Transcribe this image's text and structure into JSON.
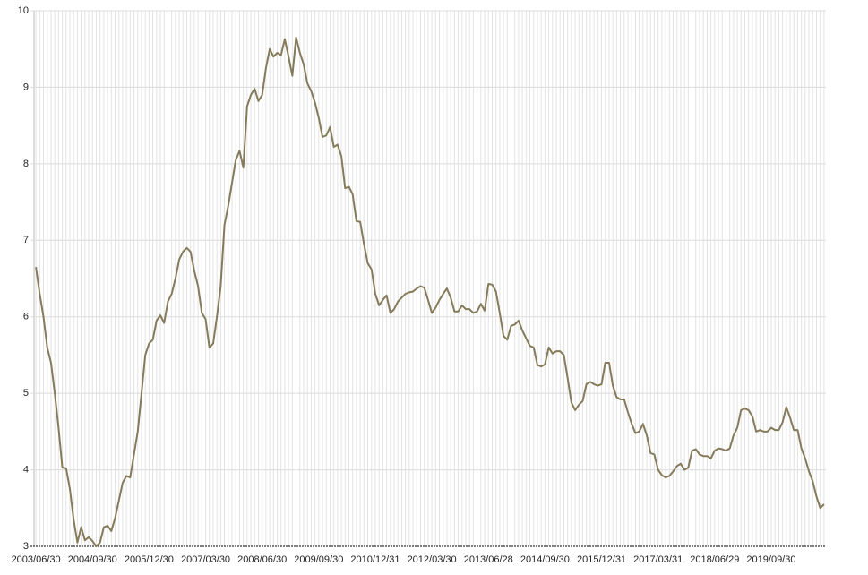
{
  "chart_data": {
    "type": "line",
    "categories": [
      "2003/06/30",
      null,
      null,
      null,
      null,
      null,
      null,
      null,
      null,
      null,
      null,
      null,
      null,
      null,
      null,
      "2004/09/30",
      null,
      null,
      null,
      null,
      null,
      null,
      null,
      null,
      null,
      null,
      null,
      null,
      null,
      null,
      "2005/12/30",
      null,
      null,
      null,
      null,
      null,
      null,
      null,
      null,
      null,
      null,
      null,
      null,
      null,
      null,
      "2007/03/30",
      null,
      null,
      null,
      null,
      null,
      null,
      null,
      null,
      null,
      null,
      null,
      null,
      null,
      null,
      "2008/06/30",
      null,
      null,
      null,
      null,
      null,
      null,
      null,
      null,
      null,
      null,
      null,
      null,
      null,
      null,
      "2009/09/30",
      null,
      null,
      null,
      null,
      null,
      null,
      null,
      null,
      null,
      null,
      null,
      null,
      null,
      null,
      "2010/12/31",
      null,
      null,
      null,
      null,
      null,
      null,
      null,
      null,
      null,
      null,
      null,
      null,
      null,
      null,
      "2012/03/30",
      null,
      null,
      null,
      null,
      null,
      null,
      null,
      null,
      null,
      null,
      null,
      null,
      null,
      null,
      "2013/06/28",
      null,
      null,
      null,
      null,
      null,
      null,
      null,
      null,
      null,
      null,
      null,
      null,
      null,
      null,
      "2014/09/30",
      null,
      null,
      null,
      null,
      null,
      null,
      null,
      null,
      null,
      null,
      null,
      null,
      null,
      null,
      "2015/12/31",
      null,
      null,
      null,
      null,
      null,
      null,
      null,
      null,
      null,
      null,
      null,
      null,
      null,
      null,
      "2017/03/31",
      null,
      null,
      null,
      null,
      null,
      null,
      null,
      null,
      null,
      null,
      null,
      null,
      null,
      null,
      "2018/06/29",
      null,
      null,
      null,
      null,
      null,
      null,
      null,
      null,
      null,
      null,
      null,
      null,
      null,
      null,
      "2019/09/30",
      null,
      null,
      null,
      null,
      null,
      null,
      null,
      null,
      null,
      null,
      null,
      null,
      null,
      null
    ],
    "values": [
      6.65,
      6.3,
      6.0,
      5.6,
      5.4,
      5.0,
      4.55,
      4.03,
      4.02,
      3.75,
      3.35,
      3.05,
      3.25,
      3.08,
      3.12,
      3.07,
      3.0,
      3.05,
      3.25,
      3.27,
      3.2,
      3.37,
      3.6,
      3.83,
      3.92,
      3.9,
      4.2,
      4.5,
      5.0,
      5.5,
      5.65,
      5.7,
      5.95,
      6.02,
      5.92,
      6.2,
      6.3,
      6.5,
      6.75,
      6.85,
      6.9,
      6.85,
      6.6,
      6.4,
      6.05,
      5.97,
      5.6,
      5.65,
      6.0,
      6.4,
      7.2,
      7.45,
      7.75,
      8.05,
      8.17,
      7.95,
      8.75,
      8.9,
      8.98,
      8.82,
      8.9,
      9.25,
      9.5,
      9.4,
      9.45,
      9.42,
      9.63,
      9.4,
      9.15,
      9.65,
      9.45,
      9.3,
      9.05,
      8.95,
      8.8,
      8.6,
      8.35,
      8.37,
      8.48,
      8.22,
      8.25,
      8.1,
      7.68,
      7.7,
      7.6,
      7.25,
      7.24,
      6.95,
      6.7,
      6.62,
      6.3,
      6.15,
      6.22,
      6.28,
      6.05,
      6.1,
      6.2,
      6.25,
      6.3,
      6.32,
      6.33,
      6.37,
      6.4,
      6.38,
      6.22,
      6.05,
      6.12,
      6.22,
      6.3,
      6.37,
      6.25,
      6.07,
      6.07,
      6.15,
      6.1,
      6.1,
      6.05,
      6.07,
      6.17,
      6.08,
      6.43,
      6.42,
      6.33,
      6.05,
      5.75,
      5.7,
      5.88,
      5.9,
      5.95,
      5.82,
      5.72,
      5.62,
      5.6,
      5.37,
      5.35,
      5.38,
      5.6,
      5.52,
      5.55,
      5.55,
      5.5,
      5.2,
      4.88,
      4.78,
      4.85,
      4.9,
      5.12,
      5.15,
      5.12,
      5.1,
      5.12,
      5.4,
      5.4,
      5.1,
      4.95,
      4.92,
      4.92,
      4.75,
      4.6,
      4.48,
      4.5,
      4.6,
      4.45,
      4.22,
      4.2,
      4.0,
      3.93,
      3.9,
      3.92,
      3.98,
      4.05,
      4.08,
      4.0,
      4.03,
      4.25,
      4.27,
      4.2,
      4.18,
      4.18,
      4.15,
      4.25,
      4.28,
      4.27,
      4.25,
      4.28,
      4.45,
      4.55,
      4.78,
      4.8,
      4.78,
      4.7,
      4.5,
      4.52,
      4.5,
      4.5,
      4.55,
      4.52,
      4.52,
      4.62,
      4.82,
      4.68,
      4.52,
      4.52,
      4.28,
      4.15,
      3.98,
      3.85,
      3.65,
      3.5,
      3.55
    ],
    "color": "#857a5a",
    "ylim": [
      3,
      10
    ],
    "yticks": [
      3,
      4,
      5,
      6,
      7,
      8,
      9,
      10
    ],
    "grid": true
  }
}
